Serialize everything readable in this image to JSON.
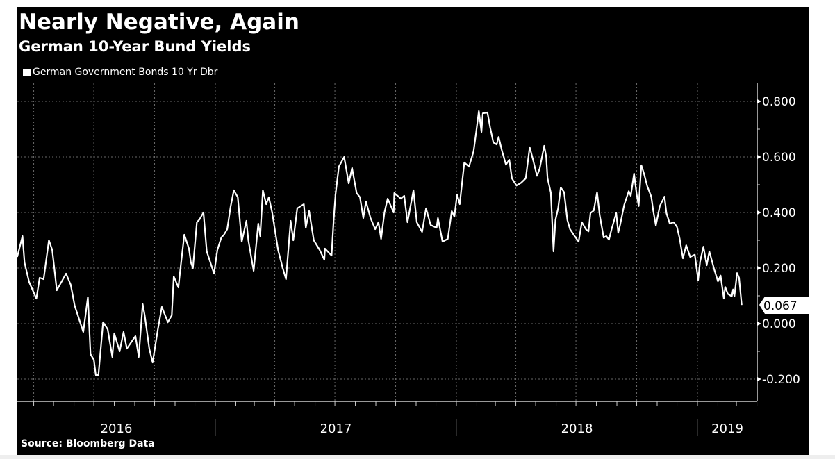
{
  "chart_data": {
    "type": "line",
    "title": "Nearly Negative, Again",
    "subtitle": "German 10-Year Bund Yields",
    "source": "Source: Bloomberg Data",
    "legend_position": "top-left",
    "grid": true,
    "y_axis_side": "right",
    "ylim": [
      -0.29,
      0.86
    ],
    "yticks": [
      "0.800",
      "0.600",
      "0.400",
      "0.200",
      "0.000",
      "-0.200"
    ],
    "ytick_values": [
      0.8,
      0.6,
      0.4,
      0.2,
      0.0,
      -0.2
    ],
    "xlim": [
      "2016-03-07",
      "2019-03-09"
    ],
    "year_labels": [
      "2016",
      "2017",
      "2018",
      "2019"
    ],
    "last_value_label": "0.067",
    "colors": {
      "background": "#000000",
      "line": "#ffffff",
      "grid": "#666666",
      "last_value_box": "#ffffff"
    },
    "series": [
      {
        "name": "German Government Bonds 10 Yr Dbr",
        "points": [
          [
            "2016-03-07",
            0.24
          ],
          [
            "2016-03-15",
            0.315
          ],
          [
            "2016-03-18",
            0.22
          ],
          [
            "2016-03-25",
            0.15
          ],
          [
            "2016-04-05",
            0.09
          ],
          [
            "2016-04-10",
            0.165
          ],
          [
            "2016-04-16",
            0.16
          ],
          [
            "2016-04-24",
            0.3
          ],
          [
            "2016-04-29",
            0.265
          ],
          [
            "2016-05-06",
            0.12
          ],
          [
            "2016-05-20",
            0.18
          ],
          [
            "2016-05-27",
            0.14
          ],
          [
            "2016-06-02",
            0.065
          ],
          [
            "2016-06-15",
            -0.03
          ],
          [
            "2016-06-22",
            0.095
          ],
          [
            "2016-06-26",
            -0.11
          ],
          [
            "2016-07-01",
            -0.13
          ],
          [
            "2016-07-04",
            -0.185
          ],
          [
            "2016-07-08",
            -0.185
          ],
          [
            "2016-07-15",
            0.005
          ],
          [
            "2016-07-22",
            -0.02
          ],
          [
            "2016-07-29",
            -0.12
          ],
          [
            "2016-08-01",
            -0.035
          ],
          [
            "2016-08-09",
            -0.1
          ],
          [
            "2016-08-15",
            -0.03
          ],
          [
            "2016-08-20",
            -0.09
          ],
          [
            "2016-09-02",
            -0.045
          ],
          [
            "2016-09-07",
            -0.12
          ],
          [
            "2016-09-13",
            0.07
          ],
          [
            "2016-09-16",
            0.03
          ],
          [
            "2016-09-23",
            -0.09
          ],
          [
            "2016-09-28",
            -0.14
          ],
          [
            "2016-10-06",
            -0.02
          ],
          [
            "2016-10-12",
            0.06
          ],
          [
            "2016-10-21",
            0.005
          ],
          [
            "2016-10-27",
            0.03
          ],
          [
            "2016-10-30",
            0.17
          ],
          [
            "2016-11-06",
            0.13
          ],
          [
            "2016-11-09",
            0.195
          ],
          [
            "2016-11-15",
            0.32
          ],
          [
            "2016-11-22",
            0.27
          ],
          [
            "2016-11-25",
            0.22
          ],
          [
            "2016-11-28",
            0.2
          ],
          [
            "2016-12-04",
            0.365
          ],
          [
            "2016-12-08",
            0.375
          ],
          [
            "2016-12-14",
            0.4
          ],
          [
            "2016-12-19",
            0.26
          ],
          [
            "2016-12-30",
            0.18
          ],
          [
            "2017-01-04",
            0.265
          ],
          [
            "2017-01-10",
            0.31
          ],
          [
            "2017-01-14",
            0.32
          ],
          [
            "2017-01-19",
            0.34
          ],
          [
            "2017-01-24",
            0.42
          ],
          [
            "2017-01-29",
            0.48
          ],
          [
            "2017-02-04",
            0.455
          ],
          [
            "2017-02-10",
            0.295
          ],
          [
            "2017-02-17",
            0.37
          ],
          [
            "2017-02-20",
            0.3
          ],
          [
            "2017-02-28",
            0.19
          ],
          [
            "2017-03-07",
            0.36
          ],
          [
            "2017-03-10",
            0.315
          ],
          [
            "2017-03-14",
            0.48
          ],
          [
            "2017-03-19",
            0.43
          ],
          [
            "2017-03-23",
            0.455
          ],
          [
            "2017-03-28",
            0.4
          ],
          [
            "2017-04-06",
            0.265
          ],
          [
            "2017-04-13",
            0.2
          ],
          [
            "2017-04-18",
            0.16
          ],
          [
            "2017-04-25",
            0.37
          ],
          [
            "2017-04-29",
            0.3
          ],
          [
            "2017-05-05",
            0.415
          ],
          [
            "2017-05-15",
            0.43
          ],
          [
            "2017-05-18",
            0.345
          ],
          [
            "2017-05-23",
            0.405
          ],
          [
            "2017-05-30",
            0.3
          ],
          [
            "2017-06-08",
            0.265
          ],
          [
            "2017-06-15",
            0.23
          ],
          [
            "2017-06-16",
            0.27
          ],
          [
            "2017-06-26",
            0.245
          ],
          [
            "2017-06-29",
            0.37
          ],
          [
            "2017-07-02",
            0.465
          ],
          [
            "2017-07-07",
            0.565
          ],
          [
            "2017-07-15",
            0.6
          ],
          [
            "2017-07-22",
            0.505
          ],
          [
            "2017-07-27",
            0.56
          ],
          [
            "2017-08-03",
            0.47
          ],
          [
            "2017-08-08",
            0.455
          ],
          [
            "2017-08-13",
            0.38
          ],
          [
            "2017-08-17",
            0.44
          ],
          [
            "2017-08-24",
            0.38
          ],
          [
            "2017-08-31",
            0.34
          ],
          [
            "2017-09-05",
            0.365
          ],
          [
            "2017-09-09",
            0.305
          ],
          [
            "2017-09-14",
            0.4
          ],
          [
            "2017-09-19",
            0.45
          ],
          [
            "2017-09-28",
            0.4
          ],
          [
            "2017-09-29",
            0.47
          ],
          [
            "2017-10-09",
            0.45
          ],
          [
            "2017-10-14",
            0.46
          ],
          [
            "2017-10-19",
            0.365
          ],
          [
            "2017-10-28",
            0.48
          ],
          [
            "2017-11-02",
            0.365
          ],
          [
            "2017-11-10",
            0.33
          ],
          [
            "2017-11-16",
            0.415
          ],
          [
            "2017-11-23",
            0.355
          ],
          [
            "2017-12-02",
            0.345
          ],
          [
            "2017-12-04",
            0.38
          ],
          [
            "2017-12-11",
            0.295
          ],
          [
            "2017-12-19",
            0.305
          ],
          [
            "2017-12-25",
            0.405
          ],
          [
            "2017-12-29",
            0.385
          ],
          [
            "2018-01-02",
            0.465
          ],
          [
            "2018-01-06",
            0.43
          ],
          [
            "2018-01-13",
            0.58
          ],
          [
            "2018-01-20",
            0.565
          ],
          [
            "2018-01-27",
            0.62
          ],
          [
            "2018-01-31",
            0.69
          ],
          [
            "2018-02-04",
            0.765
          ],
          [
            "2018-02-08",
            0.69
          ],
          [
            "2018-02-10",
            0.757
          ],
          [
            "2018-02-17",
            0.76
          ],
          [
            "2018-02-21",
            0.707
          ],
          [
            "2018-02-26",
            0.652
          ],
          [
            "2018-03-03",
            0.645
          ],
          [
            "2018-03-06",
            0.672
          ],
          [
            "2018-03-11",
            0.622
          ],
          [
            "2018-03-17",
            0.572
          ],
          [
            "2018-03-22",
            0.59
          ],
          [
            "2018-03-26",
            0.523
          ],
          [
            "2018-04-02",
            0.497
          ],
          [
            "2018-04-09",
            0.507
          ],
          [
            "2018-04-16",
            0.523
          ],
          [
            "2018-04-22",
            0.635
          ],
          [
            "2018-04-27",
            0.59
          ],
          [
            "2018-05-03",
            0.532
          ],
          [
            "2018-05-07",
            0.557
          ],
          [
            "2018-05-14",
            0.64
          ],
          [
            "2018-05-17",
            0.6
          ],
          [
            "2018-05-19",
            0.523
          ],
          [
            "2018-05-24",
            0.472
          ],
          [
            "2018-05-28",
            0.26
          ],
          [
            "2018-05-31",
            0.373
          ],
          [
            "2018-06-04",
            0.415
          ],
          [
            "2018-06-08",
            0.49
          ],
          [
            "2018-06-13",
            0.473
          ],
          [
            "2018-06-18",
            0.373
          ],
          [
            "2018-06-22",
            0.34
          ],
          [
            "2018-06-29",
            0.315
          ],
          [
            "2018-07-05",
            0.295
          ],
          [
            "2018-07-10",
            0.365
          ],
          [
            "2018-07-16",
            0.34
          ],
          [
            "2018-07-20",
            0.332
          ],
          [
            "2018-07-23",
            0.398
          ],
          [
            "2018-07-28",
            0.407
          ],
          [
            "2018-08-02",
            0.473
          ],
          [
            "2018-08-06",
            0.39
          ],
          [
            "2018-08-12",
            0.31
          ],
          [
            "2018-08-16",
            0.315
          ],
          [
            "2018-08-20",
            0.302
          ],
          [
            "2018-08-24",
            0.34
          ],
          [
            "2018-08-31",
            0.398
          ],
          [
            "2018-09-03",
            0.327
          ],
          [
            "2018-09-06",
            0.357
          ],
          [
            "2018-09-12",
            0.427
          ],
          [
            "2018-09-19",
            0.477
          ],
          [
            "2018-09-22",
            0.46
          ],
          [
            "2018-09-27",
            0.54
          ],
          [
            "2018-10-01",
            0.465
          ],
          [
            "2018-10-04",
            0.423
          ],
          [
            "2018-10-08",
            0.57
          ],
          [
            "2018-10-12",
            0.54
          ],
          [
            "2018-10-17",
            0.495
          ],
          [
            "2018-10-23",
            0.457
          ],
          [
            "2018-10-26",
            0.407
          ],
          [
            "2018-10-30",
            0.353
          ],
          [
            "2018-11-05",
            0.423
          ],
          [
            "2018-11-12",
            0.457
          ],
          [
            "2018-11-15",
            0.398
          ],
          [
            "2018-11-20",
            0.36
          ],
          [
            "2018-11-26",
            0.365
          ],
          [
            "2018-12-01",
            0.348
          ],
          [
            "2018-12-05",
            0.307
          ],
          [
            "2018-12-10",
            0.235
          ],
          [
            "2018-12-15",
            0.282
          ],
          [
            "2018-12-21",
            0.24
          ],
          [
            "2018-12-28",
            0.248
          ],
          [
            "2019-01-02",
            0.157
          ],
          [
            "2019-01-05",
            0.223
          ],
          [
            "2019-01-10",
            0.277
          ],
          [
            "2019-01-15",
            0.21
          ],
          [
            "2019-01-19",
            0.26
          ],
          [
            "2019-01-26",
            0.198
          ],
          [
            "2019-02-01",
            0.152
          ],
          [
            "2019-02-05",
            0.173
          ],
          [
            "2019-02-10",
            0.09
          ],
          [
            "2019-02-12",
            0.132
          ],
          [
            "2019-02-16",
            0.107
          ],
          [
            "2019-02-22",
            0.098
          ],
          [
            "2019-02-24",
            0.123
          ],
          [
            "2019-02-26",
            0.098
          ],
          [
            "2019-03-02",
            0.182
          ],
          [
            "2019-03-05",
            0.165
          ],
          [
            "2019-03-09",
            0.067
          ]
        ]
      }
    ]
  }
}
